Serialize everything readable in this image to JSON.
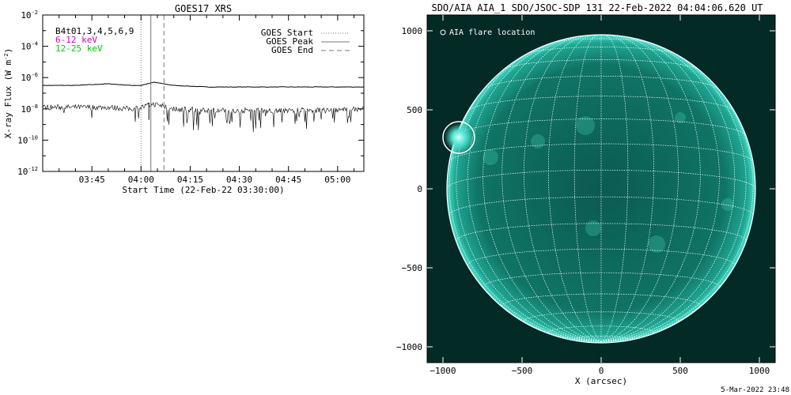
{
  "footer_stamp": "5-Mar-2022 23:48",
  "chart_data": [
    {
      "type": "line",
      "title": "GOES17 XRS",
      "xlabel": "Start Time (22-Feb-22 03:30:00)",
      "ylabel": "X-ray Flux (W m",
      "ylabel_exp": "-2",
      "ylabel_close": ")",
      "ylim_exp": [
        -12,
        -2
      ],
      "yscale": "log",
      "y_ticks": [
        {
          "base": "10",
          "exp": "-2",
          "value_exp": -2
        },
        {
          "base": "10",
          "exp": "-4",
          "value_exp": -4
        },
        {
          "base": "10",
          "exp": "-6",
          "value_exp": -6
        },
        {
          "base": "10",
          "exp": "-8",
          "value_exp": -8
        },
        {
          "base": "10",
          "exp": "-10",
          "value_exp": -10
        },
        {
          "base": "10",
          "exp": "-12",
          "value_exp": -12
        }
      ],
      "xlim": [
        "03:30",
        "05:08"
      ],
      "x_ticks": [
        {
          "label": "03:45",
          "time": "03:45"
        },
        {
          "label": "04:00",
          "time": "04:00"
        },
        {
          "label": "04:15",
          "time": "04:15"
        },
        {
          "label": "04:30",
          "time": "04:30"
        },
        {
          "label": "04:45",
          "time": "04:45"
        },
        {
          "label": "05:00",
          "time": "05:00"
        }
      ],
      "legend_left": [
        {
          "text": "B4t01,3,4,5,6,9",
          "color": "#000000"
        },
        {
          "text": "6-12 keV",
          "color": "#cc00cc"
        },
        {
          "text": "12-25 keV",
          "color": "#00cc00"
        }
      ],
      "legend_right": [
        {
          "text": "GOES Start",
          "style": "dotted"
        },
        {
          "text": "GOES Peak",
          "style": "solid"
        },
        {
          "text": "GOES End",
          "style": "dashed"
        }
      ],
      "event_lines": {
        "start": "04:00",
        "peak": "04:03",
        "end": "04:07"
      },
      "series": [
        {
          "x": [
            "03:30",
            "03:40",
            "03:50",
            "03:57",
            "04:00",
            "04:02",
            "04:04",
            "04:10",
            "04:20",
            "04:40",
            "05:00",
            "05:08"
          ],
          "y_exp": [
            -6.5,
            -6.5,
            -6.4,
            -6.5,
            -6.5,
            -6.4,
            -6.3,
            -6.5,
            -6.6,
            -6.6,
            -6.6,
            -6.6
          ]
        },
        {
          "x": [
            "03:30",
            "03:40",
            "03:50",
            "03:57",
            "04:00",
            "04:02",
            "04:04",
            "04:10",
            "04:20",
            "04:40",
            "05:00",
            "05:08"
          ],
          "y_exp": [
            -7.9,
            -7.9,
            -7.9,
            -8.0,
            -7.9,
            -7.8,
            -7.7,
            -8.0,
            -8.1,
            -8.1,
            -8.1,
            -8.0
          ]
        }
      ]
    },
    {
      "type": "image",
      "title": "SDO/AIA AIA_1 SDO/JSOC-SDP 131 22-Feb-2022 04:04:06.620 UT",
      "xlabel": "X (arcsec)",
      "xlim": [
        -1100,
        1100
      ],
      "ylim": [
        -1100,
        1100
      ],
      "x_ticks": [
        {
          "label": "−1000",
          "value": -1000
        },
        {
          "label": "−500",
          "value": -500
        },
        {
          "label": "0",
          "value": 0
        },
        {
          "label": "500",
          "value": 500
        },
        {
          "label": "1000",
          "value": 1000
        }
      ],
      "y_ticks": [
        {
          "label": "1000",
          "value": 1000
        },
        {
          "label": "500",
          "value": 500
        },
        {
          "label": "0",
          "value": 0
        },
        {
          "label": "−500",
          "value": -500
        },
        {
          "label": "−1000",
          "value": -1000
        }
      ],
      "legend": "AIA flare location",
      "flare_location": {
        "x": -900,
        "y": 325,
        "r": 100
      },
      "disk_radius": 975,
      "colors": {
        "background": "#042a26",
        "disk": "#0e6f62",
        "limb": "#34d7c2"
      }
    }
  ]
}
